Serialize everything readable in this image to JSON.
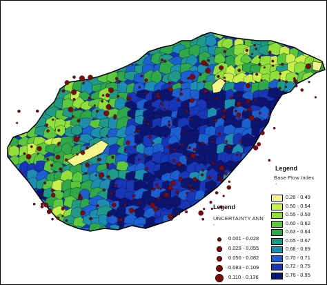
{
  "map": {
    "region": "Hungary",
    "background_color": "#ffffff",
    "outline_color": "#000000"
  },
  "legend_bfi": {
    "title": "Legend",
    "subtitle": "Base Flow Index",
    "dash": "-",
    "classes": [
      {
        "label": "0.26 - 0.49",
        "color": "#f4f58a"
      },
      {
        "label": "0.50 - 0.54",
        "color": "#c8f04a"
      },
      {
        "label": "0.55 - 0.59",
        "color": "#8fe03a"
      },
      {
        "label": "0.60 - 0.62",
        "color": "#5cc83c"
      },
      {
        "label": "0.63 - 0.64",
        "color": "#2fa84a"
      },
      {
        "label": "0.65 - 0.67",
        "color": "#1f9a86"
      },
      {
        "label": "0.68 - 0.69",
        "color": "#1c8fb0"
      },
      {
        "label": "0.70 - 0.71",
        "color": "#1b5fd0"
      },
      {
        "label": "0.72 - 0.75",
        "color": "#1836b8"
      },
      {
        "label": "0.76 - 0.95",
        "color": "#0c1570"
      }
    ]
  },
  "legend_uncertainty": {
    "title": "Legend",
    "subtitle": "UNCERTAINTY ANN",
    "dash": "-",
    "classes": [
      {
        "label": "0.001 - 0.028",
        "size_rank": 1
      },
      {
        "label": "0.029 - 0.055",
        "size_rank": 2
      },
      {
        "label": "0.056 - 0.082",
        "size_rank": 3
      },
      {
        "label": "0.083 - 0.109",
        "size_rank": 4
      },
      {
        "label": "0.110 - 0.136",
        "size_rank": 5
      }
    ],
    "dot_color": "#7a0c0c"
  }
}
